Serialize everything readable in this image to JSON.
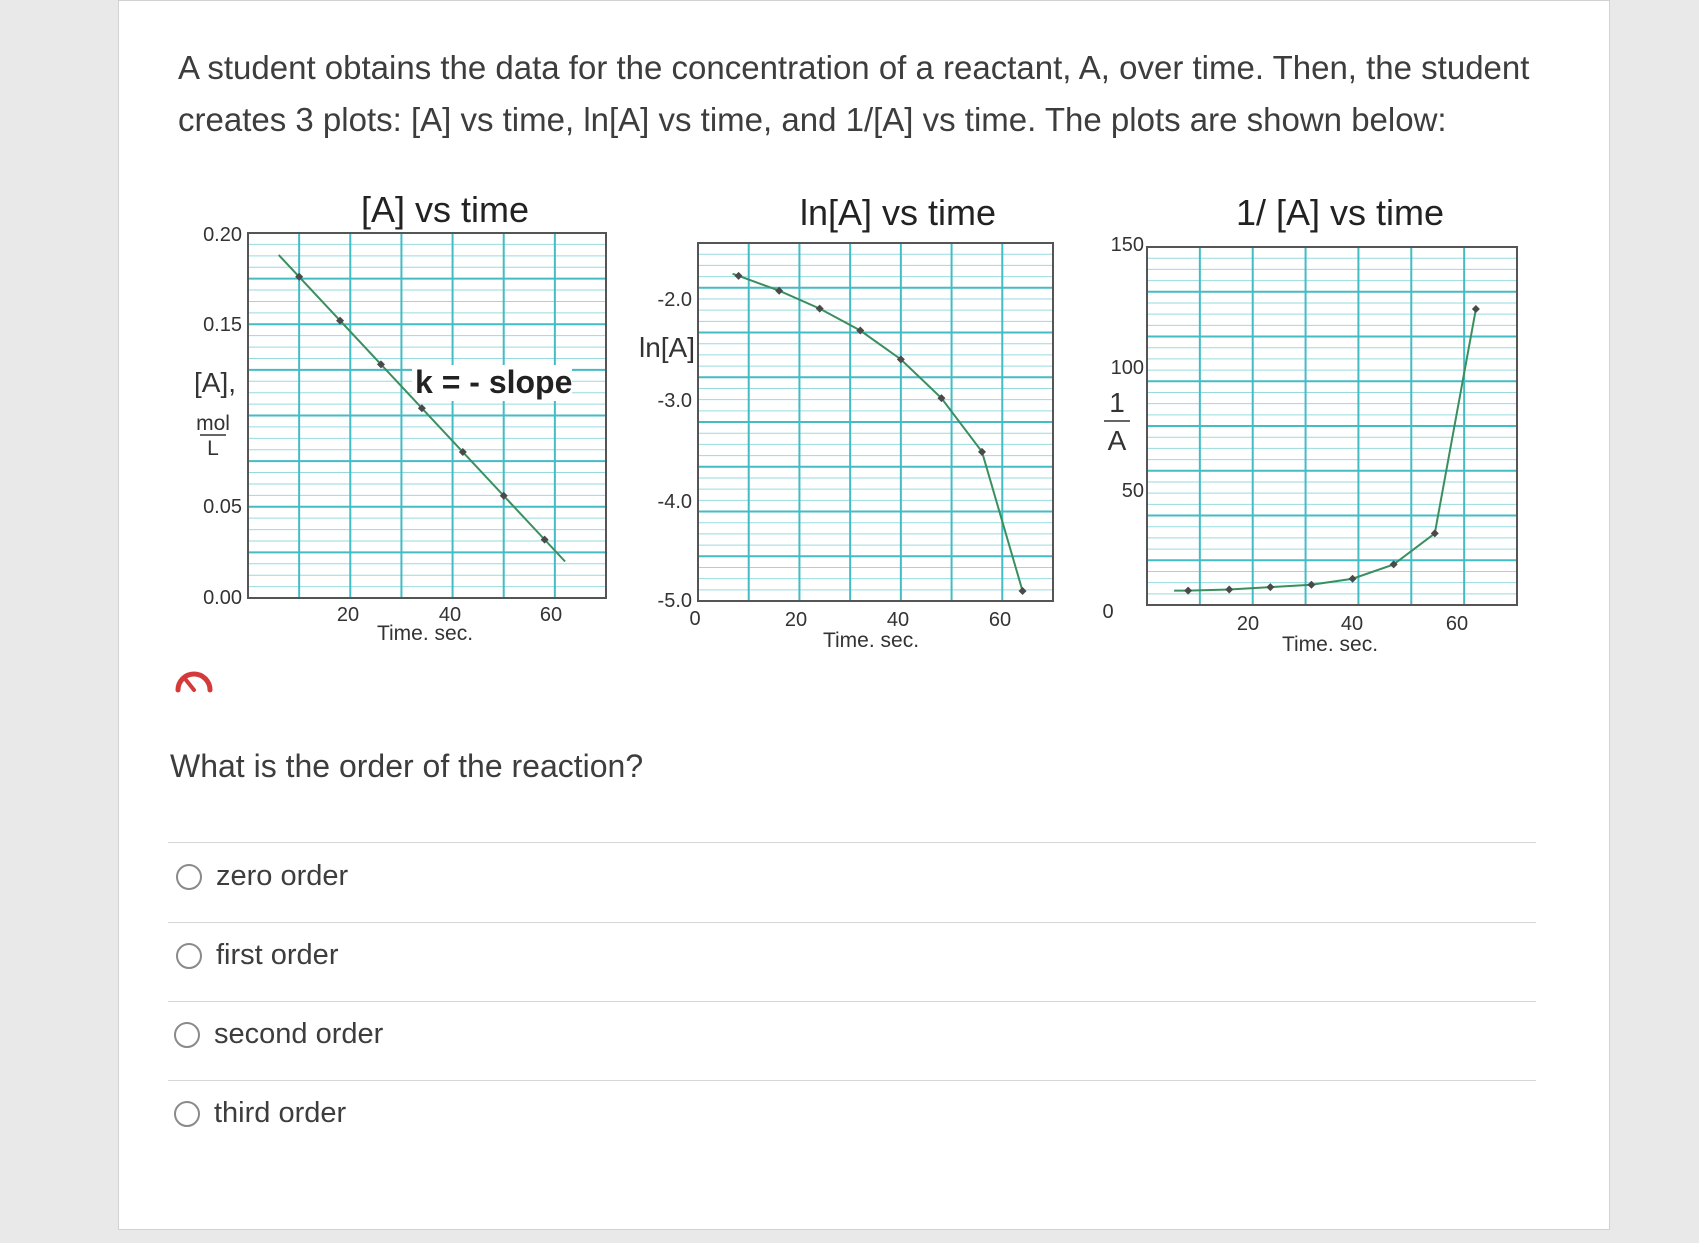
{
  "question": {
    "text": "A student obtains the data for the concentration of a reactant, A, over time. Then, the student creates 3 plots: [A] vs time, ln[A] vs time, and 1/[A] vs time. The plots are shown below:",
    "prompt": "What is the order of the reaction?"
  },
  "options": [
    {
      "label": "zero order",
      "selected": false
    },
    {
      "label": "first order",
      "selected": false
    },
    {
      "label": "second order",
      "selected": false
    },
    {
      "label": "third order",
      "selected": false
    }
  ],
  "colors": {
    "grid": "#43bcc4",
    "line": "#3b8f5e",
    "marker": "#4a4a4a",
    "gauge": "#d43a3a"
  },
  "icons": {
    "status": "gauge-icon"
  },
  "chart_data": [
    {
      "type": "line",
      "title": "[A]  vs time",
      "xlabel": "Time. sec.",
      "ylabel": "[A],",
      "ylabel_unit_num": "mol",
      "ylabel_unit_den": "L",
      "annotation": "k = - slope",
      "x_ticks": [
        "20",
        "40",
        "60"
      ],
      "y_ticks": [
        "0.20",
        "0.15",
        "0.05",
        "0.00"
      ],
      "x": [
        10,
        18,
        26,
        34,
        42,
        50,
        58
      ],
      "y": [
        0.176,
        0.152,
        0.128,
        0.104,
        0.08,
        0.056,
        0.032
      ],
      "xlim": [
        0,
        70
      ],
      "ylim": [
        0,
        0.2
      ]
    },
    {
      "type": "line",
      "title": "ln[A] vs time",
      "xlabel": "Time. sec.",
      "ylabel": "ln[A]",
      "x_ticks": [
        "0",
        "20",
        "40",
        "60"
      ],
      "y_ticks": [
        "-2.0",
        "-3.0",
        "-4.0",
        "-5.0"
      ],
      "x": [
        8,
        16,
        24,
        32,
        40,
        48,
        56,
        64
      ],
      "y": [
        -1.73,
        -1.88,
        -2.06,
        -2.28,
        -2.57,
        -2.96,
        -3.5,
        -4.9
      ],
      "xlim": [
        0,
        70
      ],
      "ylim": [
        -5.0,
        -1.4
      ]
    },
    {
      "type": "line",
      "title": "1/ [A] vs time",
      "xlabel": "Time. sec.",
      "ylabel": "1/A",
      "x_ticks": [
        "20",
        "40",
        "60"
      ],
      "y_ticks": [
        "150",
        "100",
        "50",
        "0"
      ],
      "x": [
        8,
        16,
        24,
        32,
        40,
        48,
        56,
        64
      ],
      "y": [
        6,
        6.5,
        7.5,
        8.5,
        11,
        17,
        30,
        124
      ],
      "xlim": [
        0,
        72
      ],
      "ylim": [
        0,
        150
      ]
    }
  ]
}
